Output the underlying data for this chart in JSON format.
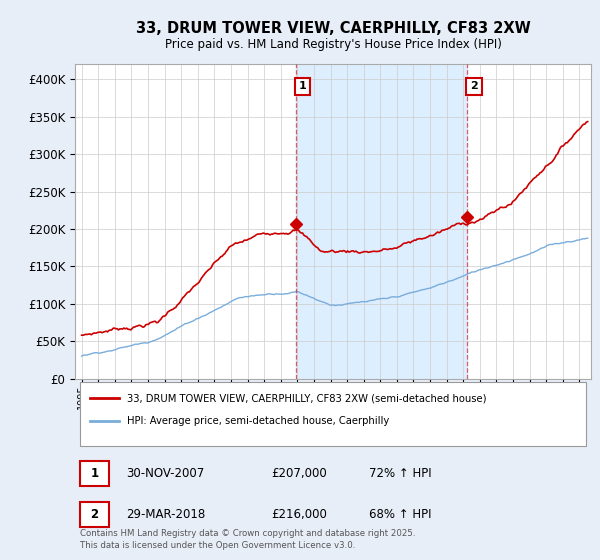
{
  "title": "33, DRUM TOWER VIEW, CAERPHILLY, CF83 2XW",
  "subtitle": "Price paid vs. HM Land Registry's House Price Index (HPI)",
  "ylabel_ticks": [
    "£0",
    "£50K",
    "£100K",
    "£150K",
    "£200K",
    "£250K",
    "£300K",
    "£350K",
    "£400K"
  ],
  "ytick_values": [
    0,
    50000,
    100000,
    150000,
    200000,
    250000,
    300000,
    350000,
    400000
  ],
  "ylim": [
    0,
    420000
  ],
  "xlim_start": 1994.6,
  "xlim_end": 2025.7,
  "red_color": "#cc0000",
  "blue_color": "#7aaddb",
  "shade_color": "#ddeeff",
  "vline_color": "#cc0000",
  "vline_alpha": 0.6,
  "marker1_x": 2007.92,
  "marker1_y": 207000,
  "marker1_label": "1",
  "marker2_x": 2018.25,
  "marker2_y": 216000,
  "marker2_label": "2",
  "legend_label_red": "33, DRUM TOWER VIEW, CAERPHILLY, CF83 2XW (semi-detached house)",
  "legend_label_blue": "HPI: Average price, semi-detached house, Caerphilly",
  "table_rows": [
    [
      "1",
      "30-NOV-2007",
      "£207,000",
      "72% ↑ HPI"
    ],
    [
      "2",
      "29-MAR-2018",
      "£216,000",
      "68% ↑ HPI"
    ]
  ],
  "footnote": "Contains HM Land Registry data © Crown copyright and database right 2025.\nThis data is licensed under the Open Government Licence v3.0.",
  "background_color": "#e8eef8",
  "plot_bg_color": "#ffffff",
  "grid_color": "#cccccc"
}
